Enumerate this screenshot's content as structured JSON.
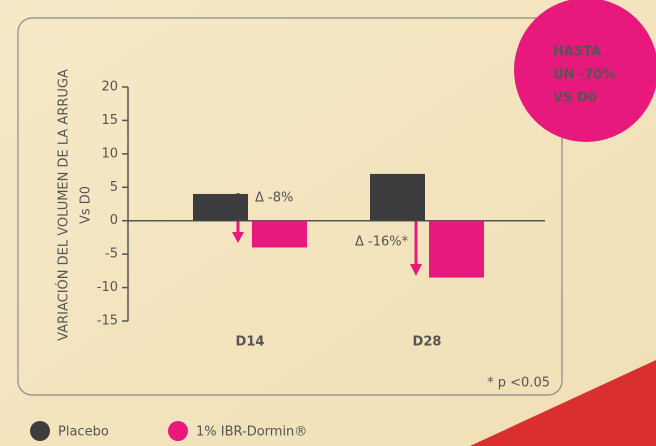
{
  "chart_data": {
    "type": "bar",
    "ylabel": [
      "VARIACIÓN DEL VOLUMEN DE LA ARRUGA",
      "Vs D0"
    ],
    "categories": [
      "D14",
      "D28"
    ],
    "series": [
      {
        "name": "Placebo",
        "color": "#3d3d3f",
        "values": [
          4,
          7
        ]
      },
      {
        "name": "1% IBR-Dormin®",
        "color": "#e8197d",
        "values": [
          -4,
          -8.5
        ]
      }
    ],
    "ylim": [
      -15,
      20
    ],
    "yticks": [
      -15,
      -10,
      -5,
      0,
      5,
      10,
      15,
      20
    ],
    "annotations": [
      "Δ -8%",
      "Δ -16%*",
      "* p <0.05"
    ],
    "badge": [
      "HASTA",
      "UN -70%",
      "VS D0"
    ],
    "legend": "bottom-left"
  }
}
